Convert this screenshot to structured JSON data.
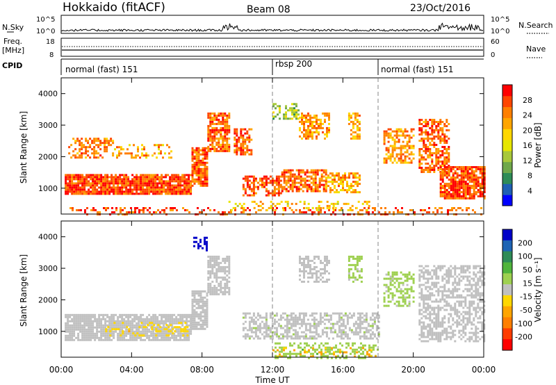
{
  "header": {
    "title": "Hokkaido (fitACF)",
    "beam": "Beam 08",
    "date": "23/Oct/2016"
  },
  "strips": {
    "nsky_label": "N.Sky",
    "nsky_ticks": [
      "10^5",
      "10^0"
    ],
    "nsearch_label": "N.Search",
    "nsearch_ticks": [
      "10^5",
      "10^0"
    ],
    "freq_label_1": "Freq.",
    "freq_label_2": "[MHz]",
    "freq_ticks": [
      "18",
      "8"
    ],
    "nave_label": "Nave",
    "nave_ticks": [
      "60",
      "0"
    ],
    "cpid_label": "CPID",
    "cpid_segments": [
      {
        "label": "normal (fast) 151",
        "start_hour": 0,
        "end_hour": 12
      },
      {
        "label": "rbsp 200",
        "start_hour": 12,
        "end_hour": 18
      },
      {
        "label": "normal (fast) 151",
        "start_hour": 18,
        "end_hour": 24
      }
    ]
  },
  "axes": {
    "xlabel": "Time UT",
    "x_ticks": [
      "00:00",
      "04:00",
      "08:00",
      "12:00",
      "16:00",
      "20:00",
      "00:00"
    ],
    "ylabel_1": "Slant Range [km]",
    "ylabel_2": "Slant Range [km]",
    "y_ticks": [
      "1000",
      "2000",
      "3000",
      "4000"
    ]
  },
  "colorbars": {
    "power": {
      "label": "Power [dB]",
      "ticks": [
        "4",
        "8",
        "12",
        "16",
        "20",
        "24",
        "28"
      ],
      "colors": [
        "#0000ff",
        "#1f5fb3",
        "#2e8b57",
        "#6fa84a",
        "#a8c83a",
        "#e6e600",
        "#ffd700",
        "#ffa500",
        "#ff7f00",
        "#ff4500",
        "#ff0000"
      ]
    },
    "velocity": {
      "label": "Velocity [m s⁻¹]",
      "ticks": [
        "200",
        "100",
        "50",
        "15",
        "-15",
        "-50",
        "-100",
        "-200"
      ],
      "colors": [
        "#0000c8",
        "#1e64b4",
        "#2e8b57",
        "#50b43c",
        "#9ed050",
        "#c0c0c0",
        "#ffd700",
        "#ffa500",
        "#ff7f00",
        "#ff3c00",
        "#ff0000"
      ]
    }
  },
  "chart_data": [
    {
      "type": "heatmap",
      "title": "Power [dB]",
      "xlabel": "Time UT",
      "ylabel": "Slant Range [km]",
      "xlim": [
        0,
        24
      ],
      "ylim": [
        180,
        4500
      ],
      "clim": [
        0,
        30
      ],
      "regions": [
        {
          "t0": 0.2,
          "t1": 7.4,
          "r0": 800,
          "r1": 1450,
          "v": 26,
          "density": 0.9
        },
        {
          "t0": 7.4,
          "t1": 8.3,
          "r0": 1100,
          "r1": 2300,
          "v": 25,
          "density": 0.85
        },
        {
          "t0": 8.3,
          "t1": 9.6,
          "r0": 2200,
          "r1": 3400,
          "v": 24,
          "density": 0.75
        },
        {
          "t0": 0.4,
          "t1": 3.0,
          "r0": 2000,
          "r1": 2600,
          "v": 23,
          "density": 0.5
        },
        {
          "t0": 3.0,
          "t1": 6.3,
          "r0": 2000,
          "r1": 2400,
          "v": 20,
          "density": 0.3
        },
        {
          "t0": 9.8,
          "t1": 10.8,
          "r0": 2100,
          "r1": 2900,
          "v": 24,
          "density": 0.7
        },
        {
          "t0": 10.3,
          "t1": 12.5,
          "r0": 800,
          "r1": 1400,
          "v": 25,
          "density": 0.6
        },
        {
          "t0": 12.5,
          "t1": 15.0,
          "r0": 900,
          "r1": 1600,
          "v": 24,
          "density": 0.7
        },
        {
          "t0": 15.0,
          "t1": 17.0,
          "r0": 900,
          "r1": 1500,
          "v": 20,
          "density": 0.6
        },
        {
          "t0": 12.0,
          "t1": 13.5,
          "r0": 3200,
          "r1": 3700,
          "v": 12,
          "density": 0.45
        },
        {
          "t0": 13.5,
          "t1": 15.2,
          "r0": 2600,
          "r1": 3400,
          "v": 22,
          "density": 0.6
        },
        {
          "t0": 16.3,
          "t1": 17.0,
          "r0": 2600,
          "r1": 3400,
          "v": 20,
          "density": 0.55
        },
        {
          "t0": 18.3,
          "t1": 20.0,
          "r0": 1800,
          "r1": 2900,
          "v": 22,
          "density": 0.55
        },
        {
          "t0": 20.3,
          "t1": 22.0,
          "r0": 1500,
          "r1": 3200,
          "v": 24,
          "density": 0.6
        },
        {
          "t0": 21.5,
          "t1": 24.0,
          "r0": 700,
          "r1": 1700,
          "v": 26,
          "density": 0.85
        },
        {
          "t0": 0.0,
          "t1": 24.0,
          "r0": 180,
          "r1": 400,
          "v": 25,
          "density": 0.25
        },
        {
          "t0": 9.5,
          "t1": 17.5,
          "r0": 300,
          "r1": 600,
          "v": 18,
          "density": 0.25
        }
      ]
    },
    {
      "type": "heatmap",
      "title": "Velocity [m s⁻¹]",
      "xlabel": "Time UT",
      "ylabel": "Slant Range [km]",
      "xlim": [
        0,
        24
      ],
      "ylim": [
        180,
        4500
      ],
      "clim": [
        -200,
        200
      ],
      "regions": [
        {
          "t0": 0.2,
          "t1": 7.4,
          "r0": 700,
          "r1": 1550,
          "v": 0,
          "density": 0.85
        },
        {
          "t0": 7.4,
          "t1": 8.3,
          "r0": 1100,
          "r1": 2300,
          "v": 0,
          "density": 0.8
        },
        {
          "t0": 8.3,
          "t1": 9.6,
          "r0": 2200,
          "r1": 3400,
          "v": 0,
          "density": 0.7
        },
        {
          "t0": 7.5,
          "t1": 8.3,
          "r0": 3600,
          "r1": 4000,
          "v": 210,
          "density": 0.5
        },
        {
          "t0": 10.3,
          "t1": 18.0,
          "r0": 800,
          "r1": 1600,
          "v": 5,
          "density": 0.55
        },
        {
          "t0": 13.5,
          "t1": 15.2,
          "r0": 2600,
          "r1": 3400,
          "v": 0,
          "density": 0.5
        },
        {
          "t0": 16.3,
          "t1": 17.1,
          "r0": 2600,
          "r1": 3400,
          "v": 30,
          "density": 0.5
        },
        {
          "t0": 18.3,
          "t1": 20.0,
          "r0": 1800,
          "r1": 2900,
          "v": 30,
          "density": 0.5
        },
        {
          "t0": 20.3,
          "t1": 24.0,
          "r0": 700,
          "r1": 3100,
          "v": 0,
          "density": 0.55
        },
        {
          "t0": 2.5,
          "t1": 7.5,
          "r0": 900,
          "r1": 1300,
          "v": -40,
          "density": 0.2
        },
        {
          "t0": 12.0,
          "t1": 18.0,
          "r0": 180,
          "r1": 650,
          "v": 40,
          "density": 0.35
        },
        {
          "t0": 12.0,
          "t1": 18.0,
          "r0": 180,
          "r1": 500,
          "v": -60,
          "density": 0.2
        }
      ]
    }
  ]
}
